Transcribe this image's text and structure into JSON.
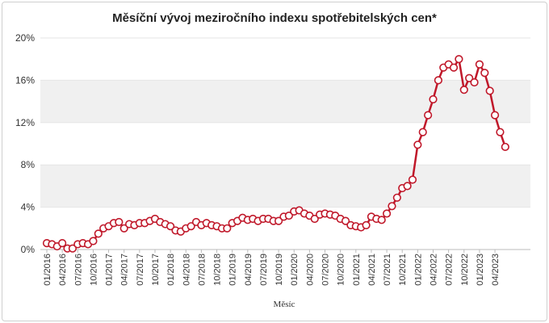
{
  "chart_data": {
    "type": "line",
    "title": "Měsíční vývoj meziročního indexu spotřebitelských cen*",
    "xlabel": "Měsíc",
    "ylabel": "",
    "ylim": [
      0,
      20
    ],
    "y_ticks": [
      "0%",
      "4%",
      "8%",
      "12%",
      "16%",
      "20%"
    ],
    "x_ticks": [
      "01/2016",
      "04/2016",
      "07/2016",
      "10/2016",
      "01/2017",
      "04/2017",
      "07/2017",
      "10/2017",
      "01/2018",
      "04/2018",
      "07/2018",
      "10/2018",
      "01/2019",
      "04/2019",
      "07/2019",
      "10/2019",
      "01/2020",
      "04/2020",
      "07/2020",
      "10/2020",
      "01/2021",
      "04/2021",
      "07/2021",
      "10/2021",
      "01/2022",
      "04/2022",
      "07/2022",
      "10/2022",
      "01/2023",
      "04/2023"
    ],
    "grid": "horizontal alternating bands",
    "legend": "none",
    "colors": {
      "line": "#c0182a",
      "marker_fill": "#ffffff",
      "band": "#f0f0f0"
    },
    "series": [
      {
        "x": [
          "01/2016",
          "02/2016",
          "03/2016",
          "04/2016",
          "05/2016",
          "06/2016",
          "07/2016",
          "08/2016",
          "09/2016",
          "10/2016",
          "11/2016",
          "12/2016",
          "01/2017",
          "02/2017",
          "03/2017",
          "04/2017",
          "05/2017",
          "06/2017",
          "07/2017",
          "08/2017",
          "09/2017",
          "10/2017",
          "11/2017",
          "12/2017",
          "01/2018",
          "02/2018",
          "03/2018",
          "04/2018",
          "05/2018",
          "06/2018",
          "07/2018",
          "08/2018",
          "09/2018",
          "10/2018",
          "11/2018",
          "12/2018",
          "01/2019",
          "02/2019",
          "03/2019",
          "04/2019",
          "05/2019",
          "06/2019",
          "07/2019",
          "08/2019",
          "09/2019",
          "10/2019",
          "11/2019",
          "12/2019",
          "01/2020",
          "02/2020",
          "03/2020",
          "04/2020",
          "05/2020",
          "06/2020",
          "07/2020",
          "08/2020",
          "09/2020",
          "10/2020",
          "11/2020",
          "12/2020",
          "01/2021",
          "02/2021",
          "03/2021",
          "04/2021",
          "05/2021",
          "06/2021",
          "07/2021",
          "08/2021",
          "09/2021",
          "10/2021",
          "11/2021",
          "12/2021",
          "01/2022",
          "02/2022",
          "03/2022",
          "04/2022",
          "05/2022",
          "06/2022",
          "07/2022",
          "08/2022",
          "09/2022",
          "10/2022",
          "11/2022",
          "12/2022",
          "01/2023",
          "02/2023",
          "03/2023",
          "04/2023",
          "05/2023",
          "06/2023"
        ],
        "values": [
          0.6,
          0.5,
          0.3,
          0.6,
          0.1,
          0.1,
          0.5,
          0.6,
          0.5,
          0.8,
          1.5,
          2.0,
          2.2,
          2.5,
          2.6,
          2.0,
          2.4,
          2.3,
          2.5,
          2.5,
          2.7,
          2.9,
          2.6,
          2.4,
          2.2,
          1.8,
          1.7,
          2.0,
          2.2,
          2.6,
          2.3,
          2.5,
          2.3,
          2.2,
          2.0,
          2.0,
          2.5,
          2.7,
          3.0,
          2.8,
          2.9,
          2.7,
          2.9,
          2.9,
          2.7,
          2.7,
          3.1,
          3.2,
          3.6,
          3.7,
          3.4,
          3.2,
          2.9,
          3.3,
          3.4,
          3.3,
          3.2,
          2.9,
          2.7,
          2.3,
          2.2,
          2.1,
          2.3,
          3.1,
          2.9,
          2.8,
          3.4,
          4.1,
          4.9,
          5.8,
          6.0,
          6.6,
          9.9,
          11.1,
          12.7,
          14.2,
          16.0,
          17.2,
          17.5,
          17.2,
          18.0,
          15.1,
          16.2,
          15.8,
          17.5,
          16.7,
          15.0,
          12.7,
          11.1,
          9.7
        ]
      }
    ]
  }
}
